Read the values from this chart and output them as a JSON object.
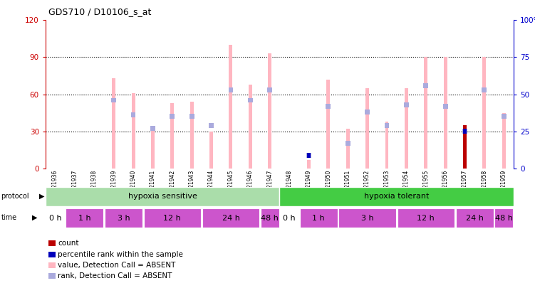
{
  "title": "GDS710 / D10106_s_at",
  "samples": [
    "GSM21936",
    "GSM21937",
    "GSM21938",
    "GSM21939",
    "GSM21940",
    "GSM21941",
    "GSM21942",
    "GSM21943",
    "GSM21944",
    "GSM21945",
    "GSM21946",
    "GSM21947",
    "GSM21948",
    "GSM21949",
    "GSM21950",
    "GSM21951",
    "GSM21952",
    "GSM21953",
    "GSM21954",
    "GSM21955",
    "GSM21956",
    "GSM21957",
    "GSM21958",
    "GSM21959"
  ],
  "pink_values": [
    0,
    0,
    0,
    73,
    61,
    33,
    53,
    54,
    30,
    100,
    68,
    93,
    0,
    7,
    72,
    32,
    65,
    38,
    65,
    90,
    90,
    0,
    90,
    45
  ],
  "blue_rank_values": [
    0,
    0,
    0,
    46,
    36,
    27,
    35,
    35,
    29,
    53,
    46,
    53,
    0,
    9,
    42,
    17,
    38,
    29,
    43,
    56,
    42,
    25,
    53,
    35
  ],
  "count_values": [
    0,
    0,
    0,
    0,
    0,
    0,
    0,
    0,
    0,
    0,
    0,
    0,
    0,
    0,
    0,
    0,
    0,
    0,
    0,
    0,
    0,
    35,
    0,
    0
  ],
  "blue_dot_values": [
    0,
    0,
    0,
    0,
    0,
    0,
    0,
    0,
    0,
    0,
    0,
    0,
    0,
    9,
    0,
    0,
    0,
    0,
    0,
    0,
    0,
    25,
    0,
    0
  ],
  "ylim_left": [
    0,
    120
  ],
  "ylim_right": [
    0,
    100
  ],
  "yticks_left": [
    0,
    30,
    60,
    90,
    120
  ],
  "ytick_labels_left": [
    "0",
    "30",
    "60",
    "90",
    "120"
  ],
  "yticks_right": [
    0,
    25,
    50,
    75,
    100
  ],
  "ytick_labels_right": [
    "0",
    "25",
    "50",
    "75",
    "100%"
  ],
  "pink_bar_color": "#FFB6C1",
  "blue_rank_color": "#AAAADD",
  "count_color": "#BB0000",
  "blue_dot_color": "#0000BB",
  "proto_sensitive_color": "#AADDAA",
  "proto_tolerant_color": "#44CC44",
  "time_magenta_color": "#CC55CC",
  "time_white_color": "#FFFFFF",
  "bg_color": "#FFFFFF",
  "axis_color_left": "#CC0000",
  "axis_color_right": "#0000CC",
  "time_defs": [
    [
      0,
      1,
      "0 h"
    ],
    [
      1,
      3,
      "1 h"
    ],
    [
      3,
      5,
      "3 h"
    ],
    [
      5,
      8,
      "12 h"
    ],
    [
      8,
      11,
      "24 h"
    ],
    [
      11,
      12,
      "48 h"
    ],
    [
      12,
      13,
      "0 h"
    ],
    [
      13,
      15,
      "1 h"
    ],
    [
      15,
      18,
      "3 h"
    ],
    [
      18,
      21,
      "12 h"
    ],
    [
      21,
      23,
      "24 h"
    ],
    [
      23,
      24,
      "48 h"
    ]
  ]
}
